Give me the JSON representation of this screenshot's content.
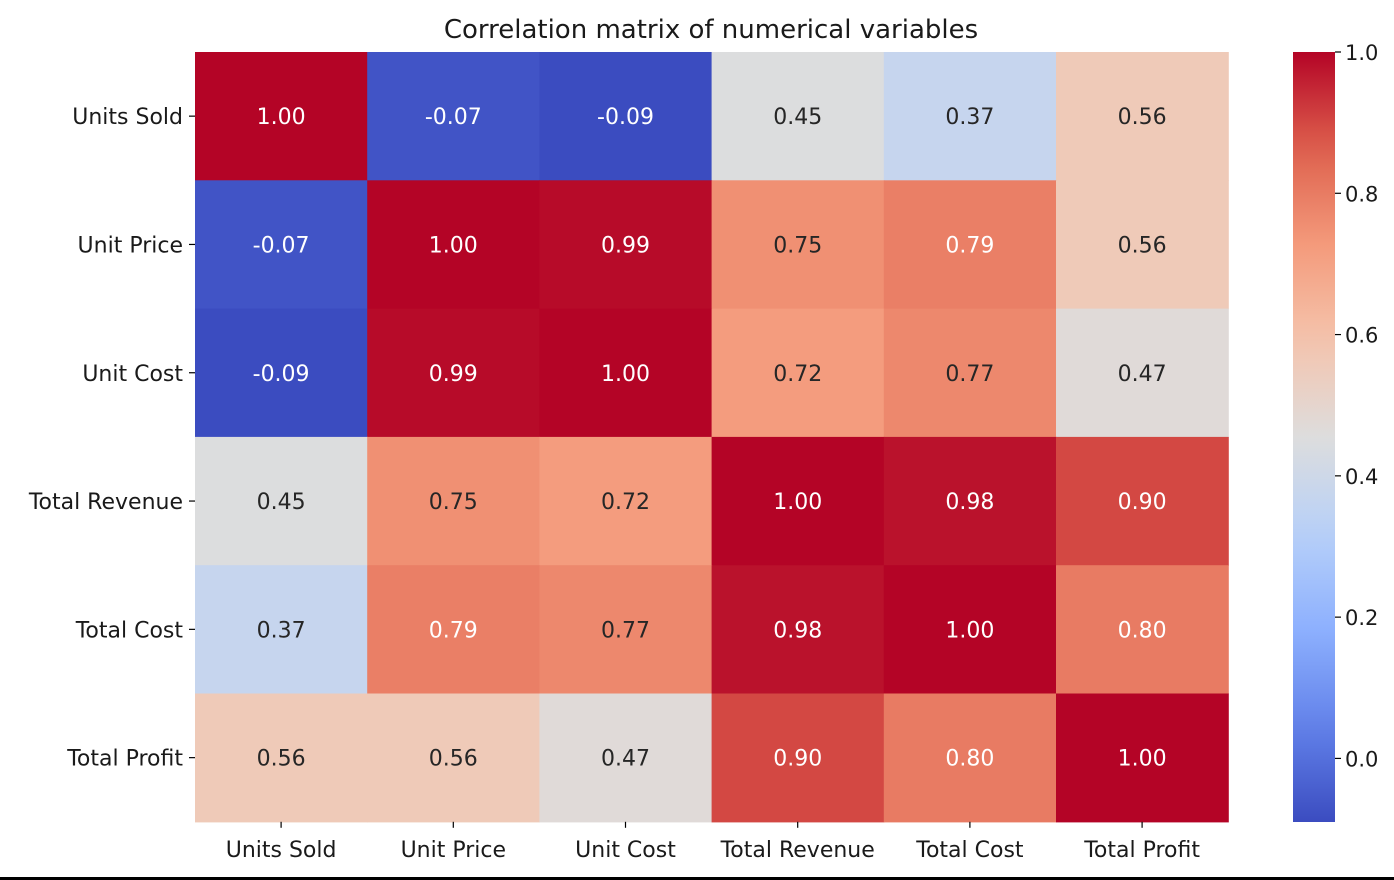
{
  "chart_data": {
    "type": "heatmap",
    "title": "Correlation matrix of numerical variables",
    "xlabel": "",
    "ylabel": "",
    "x_categories": [
      "Units Sold",
      "Unit Price",
      "Unit Cost",
      "Total Revenue",
      "Total Cost",
      "Total Profit"
    ],
    "y_categories": [
      "Units Sold",
      "Unit Price",
      "Unit Cost",
      "Total Revenue",
      "Total Cost",
      "Total Profit"
    ],
    "values": [
      [
        1.0,
        -0.07,
        -0.09,
        0.45,
        0.37,
        0.56
      ],
      [
        -0.07,
        1.0,
        0.99,
        0.75,
        0.79,
        0.56
      ],
      [
        -0.09,
        0.99,
        1.0,
        0.72,
        0.77,
        0.47
      ],
      [
        0.45,
        0.75,
        0.72,
        1.0,
        0.98,
        0.9
      ],
      [
        0.37,
        0.79,
        0.77,
        0.98,
        1.0,
        0.8
      ],
      [
        0.56,
        0.56,
        0.47,
        0.9,
        0.8,
        1.0
      ]
    ],
    "value_format": "0.00",
    "colormap": "coolwarm",
    "color_range": [
      -0.09,
      1.0
    ],
    "colorbar_ticks": [
      "0.0",
      "0.2",
      "0.4",
      "0.6",
      "0.8",
      "1.0"
    ],
    "colorbar_tick_values": [
      0.0,
      0.2,
      0.4,
      0.6,
      0.8,
      1.0
    ]
  }
}
